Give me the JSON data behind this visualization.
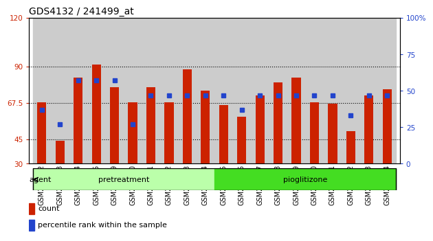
{
  "title": "GDS4132 / 241499_at",
  "samples": [
    "GSM201542",
    "GSM201543",
    "GSM201544",
    "GSM201545",
    "GSM201829",
    "GSM201830",
    "GSM201831",
    "GSM201832",
    "GSM201833",
    "GSM201834",
    "GSM201835",
    "GSM201836",
    "GSM201837",
    "GSM201838",
    "GSM201839",
    "GSM201840",
    "GSM201841",
    "GSM201842",
    "GSM201843",
    "GSM201844"
  ],
  "counts": [
    68,
    44,
    83,
    91,
    77,
    68,
    77,
    68,
    88,
    75,
    66,
    59,
    72,
    80,
    83,
    68,
    67,
    50,
    72,
    76
  ],
  "percentiles": [
    37,
    27,
    57,
    57,
    57,
    27,
    47,
    47,
    47,
    47,
    47,
    37,
    47,
    47,
    47,
    47,
    47,
    33,
    47,
    47
  ],
  "group_labels": [
    "pretreatment",
    "pioglitizone"
  ],
  "group_ranges": [
    [
      0,
      9
    ],
    [
      10,
      19
    ]
  ],
  "group_colors": [
    "#bbffaa",
    "#44dd22"
  ],
  "ylim_left": [
    30,
    120
  ],
  "yticks_left": [
    30,
    45,
    67.5,
    90,
    120
  ],
  "ytick_labels_left": [
    "30",
    "45",
    "67.5",
    "90",
    "120"
  ],
  "ylim_right": [
    0,
    100
  ],
  "yticks_right": [
    0,
    25,
    50,
    75,
    100
  ],
  "ytick_labels_right": [
    "0",
    "25",
    "50",
    "75",
    "100%"
  ],
  "hlines": [
    45,
    67.5,
    90
  ],
  "bar_color": "#cc2200",
  "dot_color": "#2244cc",
  "bar_width": 0.5,
  "agent_label": "agent",
  "legend_count": "count",
  "legend_percentile": "percentile rank within the sample",
  "bar_bottom": 30,
  "col_bg_color": "#cccccc",
  "title_fontsize": 10,
  "tick_fontsize": 7.5,
  "label_fontsize": 8
}
